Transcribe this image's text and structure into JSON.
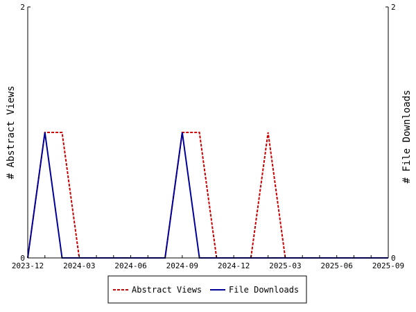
{
  "chart_data": {
    "type": "line",
    "title": "",
    "x_tick_labels": [
      "2023-12",
      "2024-03",
      "2024-06",
      "2024-09",
      "2024-12",
      "2025-03",
      "2025-06",
      "2025-09"
    ],
    "xlim": [
      "2023-12",
      "2025-09"
    ],
    "ylabel": "# Abstract Views",
    "ylabel_right": "# File Downloads",
    "ylim": [
      0,
      2
    ],
    "y_tick_labels": [
      "0",
      "2"
    ],
    "y_tick_labels_right": [
      "0",
      "2"
    ],
    "x": [
      "2023-12",
      "2024-01",
      "2024-02",
      "2024-03",
      "2024-04",
      "2024-05",
      "2024-06",
      "2024-07",
      "2024-08",
      "2024-09",
      "2024-10",
      "2024-11",
      "2024-12",
      "2025-01",
      "2025-02",
      "2025-03",
      "2025-04",
      "2025-05",
      "2025-06",
      "2025-07",
      "2025-08",
      "2025-09"
    ],
    "series": [
      {
        "name": "Abstract Views",
        "color": "#cc0000",
        "style": "dashed",
        "axis": "left",
        "values": [
          0,
          1,
          1,
          0,
          0,
          0,
          0,
          0,
          0,
          1,
          1,
          0,
          0,
          0,
          1,
          0,
          0,
          0,
          0,
          0,
          0,
          0
        ]
      },
      {
        "name": "File Downloads",
        "color": "#000099",
        "style": "solid",
        "axis": "right",
        "values": [
          0,
          1,
          0,
          0,
          0,
          0,
          0,
          0,
          0,
          1,
          0,
          0,
          0,
          0,
          0,
          0,
          0,
          0,
          0,
          0,
          0,
          0
        ]
      }
    ],
    "legend_position": "bottom-center",
    "grid": false
  }
}
